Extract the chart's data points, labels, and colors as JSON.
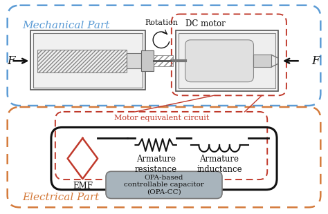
{
  "fig_width": 4.74,
  "fig_height": 3.1,
  "dpi": 100,
  "bg_color": "#ffffff",
  "blue": "#5b9bd5",
  "orange": "#d47a3a",
  "red": "#c0392b",
  "black": "#111111",
  "gray_fill": "#a8b4bc",
  "gray_box": "#d0d0d0",
  "mechanical_label": "Mechanical Part",
  "electrical_label": "Electrical Part",
  "dc_motor_label": "DC motor",
  "motor_equiv_label": "Motor equivalent circuit",
  "rotation_label": "Rotation",
  "emf_label": "EMF",
  "arm_res_label": "Armature\nresistance",
  "arm_ind_label": "Armature\ninductance",
  "opa_label": "OPA-based\ncontrollable capacitor\n(OPA-CC)",
  "F_label": "F"
}
